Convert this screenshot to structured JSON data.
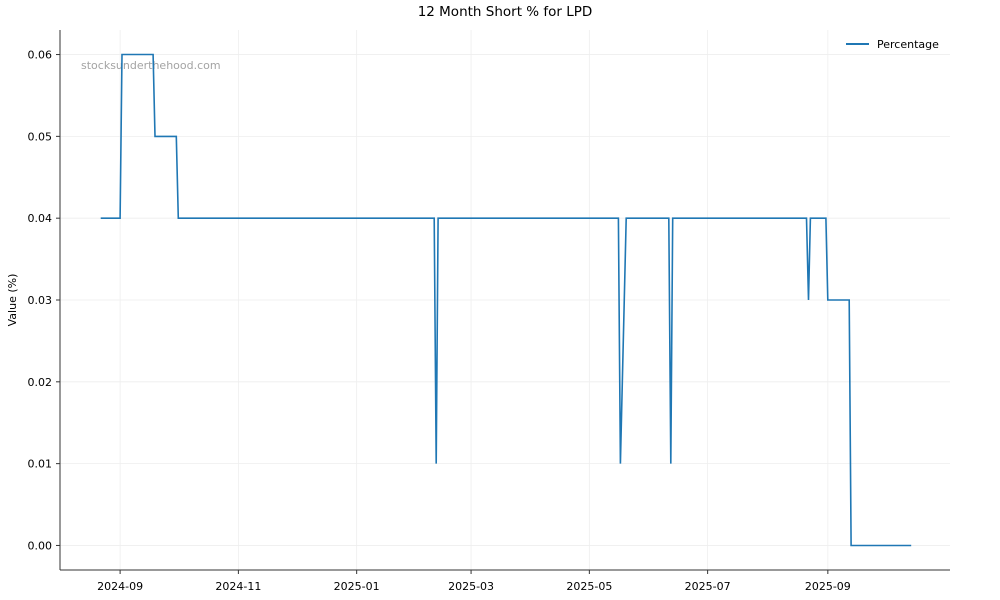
{
  "chart_data": {
    "type": "line",
    "title": "12 Month Short % for LPD",
    "xlabel": "",
    "ylabel": "Value (%)",
    "watermark": "stocksunderthehood.com",
    "legend": {
      "placement": "top-right",
      "entries": [
        "Percentage"
      ]
    },
    "grid": true,
    "xlim": [
      "2024-08-01",
      "2025-11-03"
    ],
    "ylim": [
      -0.003,
      0.063
    ],
    "x_ticks": [
      "2024-09",
      "2024-11",
      "2025-01",
      "2025-03",
      "2025-05",
      "2025-07",
      "2025-09"
    ],
    "y_ticks": [
      "0.00",
      "0.01",
      "0.02",
      "0.03",
      "0.04",
      "0.05",
      "0.06"
    ],
    "series": [
      {
        "name": "Percentage",
        "color": "#1f77b4",
        "points": [
          [
            "2024-08-22",
            0.04
          ],
          [
            "2024-09-01",
            0.04
          ],
          [
            "2024-09-02",
            0.06
          ],
          [
            "2024-09-18",
            0.06
          ],
          [
            "2024-09-19",
            0.05
          ],
          [
            "2024-09-30",
            0.05
          ],
          [
            "2024-10-01",
            0.04
          ],
          [
            "2025-02-10",
            0.04
          ],
          [
            "2025-02-11",
            0.01
          ],
          [
            "2025-02-12",
            0.04
          ],
          [
            "2025-05-16",
            0.04
          ],
          [
            "2025-05-17",
            0.01
          ],
          [
            "2025-05-20",
            0.04
          ],
          [
            "2025-06-11",
            0.04
          ],
          [
            "2025-06-12",
            0.01
          ],
          [
            "2025-06-13",
            0.04
          ],
          [
            "2025-08-21",
            0.04
          ],
          [
            "2025-08-22",
            0.03
          ],
          [
            "2025-08-23",
            0.04
          ],
          [
            "2025-08-31",
            0.04
          ],
          [
            "2025-09-01",
            0.03
          ],
          [
            "2025-09-12",
            0.03
          ],
          [
            "2025-09-13",
            0.0
          ],
          [
            "2025-10-14",
            0.0
          ]
        ]
      }
    ]
  }
}
